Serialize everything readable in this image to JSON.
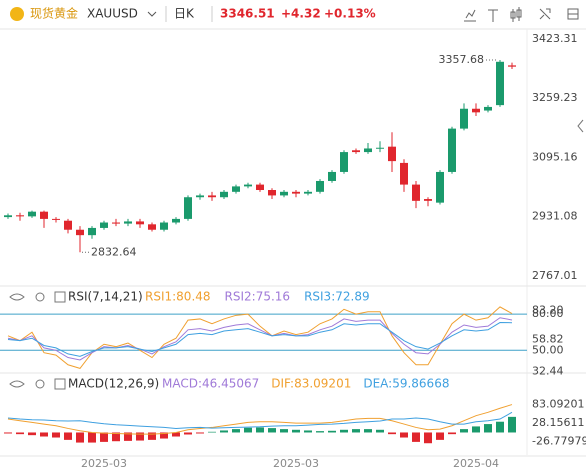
{
  "toolbar": {
    "name": "现货黄金",
    "symbol": "XAUUSD",
    "period": "日K",
    "price": "3346.51",
    "change": "+4.32",
    "change_pct": "+0.13%"
  },
  "chart_data": [
    {
      "type": "candlestick",
      "up_color": "#1a9a6c",
      "down_color": "#e0262d",
      "open": [
        2930,
        2935,
        2932,
        2945,
        2925,
        2920,
        2895,
        2880,
        2900,
        2915,
        2912,
        2918,
        2910,
        2895,
        2915,
        2925,
        2985,
        2990,
        2985,
        3000,
        3015,
        3020,
        3005,
        2990,
        3000,
        2995,
        3000,
        3030,
        3055,
        3115,
        3110,
        3120,
        3125,
        3080,
        3020,
        2980,
        2970,
        3055,
        3175,
        3230,
        3225,
        3240,
        3350
      ],
      "high": [
        2940,
        2942,
        2948,
        2948,
        2930,
        2925,
        2905,
        2905,
        2920,
        2925,
        2925,
        2925,
        2915,
        2920,
        2930,
        2990,
        2995,
        3000,
        3005,
        3020,
        3025,
        3025,
        3010,
        3005,
        3005,
        3005,
        3035,
        3060,
        3115,
        3120,
        3135,
        3140,
        3165,
        3090,
        3030,
        2985,
        3060,
        3180,
        3245,
        3245,
        3240,
        3365,
        3357.68
      ],
      "low": [
        2925,
        2920,
        2928,
        2900,
        2915,
        2885,
        2832.64,
        2870,
        2895,
        2905,
        2905,
        2900,
        2890,
        2890,
        2910,
        2920,
        2978,
        2975,
        2980,
        2995,
        3010,
        3000,
        2980,
        2985,
        2985,
        2990,
        2995,
        3025,
        3050,
        3105,
        3105,
        3110,
        3055,
        3000,
        2955,
        2960,
        2965,
        3050,
        3170,
        3210,
        3220,
        3235,
        3340
      ],
      "close": [
        2935,
        2932,
        2945,
        2925,
        2923,
        2895,
        2880,
        2900,
        2915,
        2912,
        2918,
        2910,
        2895,
        2915,
        2925,
        2985,
        2990,
        2985,
        3000,
        3015,
        3020,
        3005,
        2990,
        3000,
        2995,
        3000,
        3030,
        3055,
        3110,
        3110,
        3120,
        3122,
        3085,
        3020,
        2975,
        2975,
        3055,
        3175,
        3230,
        3220,
        3235,
        3360,
        3346.51
      ],
      "high_label": "3357.68",
      "low_label": "2832.64",
      "ylim": [
        2742,
        3448
      ],
      "yticks": [
        3423.31,
        3259.23,
        3095.16,
        2931.08,
        2767.01
      ]
    },
    {
      "type": "line",
      "title": "RSI(7,14,21)",
      "series": [
        {
          "name": "RSI1:80.48",
          "color": "#f0a030",
          "values": [
            62,
            58,
            65,
            48,
            46,
            38,
            35,
            48,
            55,
            53,
            56,
            50,
            44,
            55,
            60,
            75,
            76,
            72,
            76,
            79,
            80,
            70,
            62,
            66,
            63,
            65,
            72,
            76,
            84,
            80,
            82,
            82,
            62,
            48,
            38,
            38,
            55,
            72,
            80,
            75,
            77,
            86,
            80.48
          ]
        },
        {
          "name": "RSI2:75.16",
          "color": "#a07ad8",
          "values": [
            60,
            58,
            62,
            52,
            50,
            44,
            42,
            48,
            53,
            52,
            54,
            51,
            47,
            53,
            57,
            67,
            68,
            66,
            69,
            71,
            72,
            67,
            62,
            64,
            62,
            63,
            67,
            70,
            76,
            74,
            75,
            75,
            64,
            55,
            48,
            47,
            55,
            65,
            71,
            69,
            70,
            77,
            75.16
          ]
        },
        {
          "name": "RSI3:72.89",
          "color": "#3fa0e0",
          "values": [
            59,
            58,
            60,
            54,
            52,
            47,
            45,
            49,
            52,
            52,
            53,
            51,
            49,
            52,
            55,
            63,
            64,
            63,
            66,
            67,
            68,
            65,
            62,
            63,
            62,
            62,
            65,
            67,
            72,
            71,
            72,
            72,
            65,
            58,
            53,
            51,
            56,
            62,
            67,
            66,
            67,
            73,
            72.89
          ]
        }
      ],
      "reference_lines": [
        80,
        50
      ],
      "reference_color": "#3fa0c8",
      "ylim": [
        32,
        100
      ],
      "yticks": [
        {
          "value": 80,
          "label": "80.00"
        },
        {
          "value": 83.2,
          "label": "83.20"
        },
        58.82,
        {
          "value": 50,
          "label": "50.00"
        },
        32.44
      ]
    },
    {
      "type": "bar",
      "title": "MACD(12,26,9)",
      "categories": [
        null,
        null,
        null,
        null,
        null,
        null,
        null,
        null,
        "2025-03",
        null,
        null,
        null,
        null,
        null,
        null,
        null,
        null,
        null,
        null,
        null,
        null,
        null,
        null,
        null,
        "2025-03",
        null,
        null,
        null,
        null,
        null,
        null,
        null,
        null,
        null,
        null,
        null,
        null,
        null,
        null,
        "2025-04",
        null,
        null,
        null
      ],
      "series": [
        {
          "name": "MACD:46.45067",
          "kind": "bar",
          "color": "#1a9a6c",
          "negative_color": "#e0262d",
          "values": [
            -3,
            -5,
            -8,
            -12,
            -15,
            -22,
            -30,
            -30,
            -28,
            -26,
            -25,
            -24,
            -22,
            -18,
            -12,
            -6,
            -3,
            2,
            6,
            10,
            14,
            15,
            13,
            10,
            8,
            6,
            4,
            5,
            8,
            10,
            10,
            8,
            -5,
            -15,
            -28,
            -32,
            -22,
            -5,
            10,
            18,
            25,
            32,
            46.45067
          ]
        },
        {
          "name": "DIF:83.09201",
          "kind": "line",
          "color": "#f0a030",
          "values": [
            40,
            35,
            30,
            25,
            20,
            12,
            5,
            0,
            -2,
            -3,
            -4,
            -5,
            -5,
            -3,
            0,
            8,
            12,
            15,
            20,
            25,
            30,
            32,
            32,
            30,
            28,
            28,
            28,
            30,
            35,
            40,
            42,
            42,
            35,
            25,
            15,
            8,
            10,
            20,
            35,
            50,
            60,
            72,
            83.09201
          ]
        },
        {
          "name": "DEA:59.86668",
          "kind": "line",
          "color": "#3fa0e0",
          "values": [
            43,
            40,
            38,
            37,
            35,
            34,
            35,
            30,
            26,
            23,
            21,
            19,
            17,
            15,
            12,
            14,
            15,
            13,
            14,
            15,
            16,
            17,
            19,
            20,
            20,
            22,
            24,
            25,
            27,
            30,
            32,
            34,
            40,
            40,
            43,
            40,
            32,
            25,
            25,
            32,
            35,
            40,
            59.86668
          ]
        }
      ],
      "ylim": [
        -67,
        168
      ],
      "yticks": [
        83.09201,
        28.15611,
        -26.77979
      ]
    }
  ]
}
